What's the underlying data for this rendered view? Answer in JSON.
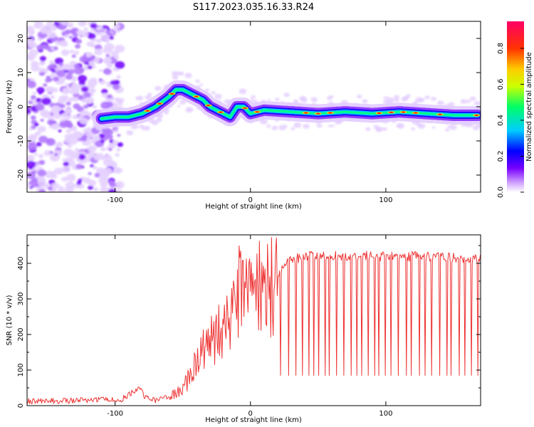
{
  "title": "S117.2023.035.16.33.R24",
  "chart_data": [
    {
      "type": "heatmap",
      "xlabel": "Height of straight line (km)",
      "ylabel": "Frequency (Hz)",
      "xlim": [
        -165,
        170
      ],
      "ylim": [
        -25,
        25
      ],
      "x_ticks": [
        -100,
        0,
        100
      ],
      "y_ticks": [
        -20,
        -10,
        0,
        10,
        20
      ],
      "colorbar": {
        "label": "Normalized spectral amplitude",
        "range": [
          0,
          0.95
        ],
        "ticks": [
          0.0,
          0.2,
          0.4,
          0.6,
          0.8
        ],
        "colors": [
          "#ffffff",
          "#cc99ff",
          "#7700ff",
          "#0000ff",
          "#00ccff",
          "#00ff66",
          "#ccff00",
          "#ffcc00",
          "#ff3300",
          "#ff0066"
        ]
      },
      "ridge": {
        "x": [
          -110,
          -100,
          -90,
          -80,
          -70,
          -60,
          -55,
          -50,
          -45,
          -40,
          -35,
          -30,
          -25,
          -20,
          -15,
          -10,
          -5,
          0,
          10,
          30,
          50,
          70,
          90,
          110,
          130,
          150,
          168
        ],
        "y": [
          -3.5,
          -3,
          -3,
          -2,
          0,
          3,
          5,
          5,
          4,
          3,
          2,
          0,
          -1,
          -2,
          -3,
          0,
          0,
          -2,
          -1,
          -1.5,
          -2,
          -1.5,
          -2,
          -1.5,
          -2,
          -2.5,
          -2.5
        ]
      },
      "noise_region_x": [
        -165,
        -100
      ]
    },
    {
      "type": "line",
      "xlabel": "Height of straight line (km)",
      "ylabel": "SNR (10 * v/v)",
      "xlim": [
        -165,
        170
      ],
      "ylim": [
        0,
        480
      ],
      "x_ticks": [
        -100,
        0,
        100
      ],
      "y_ticks": [
        0,
        100,
        200,
        300,
        400
      ],
      "color": "#ee3333",
      "profile": {
        "x": [
          -165,
          -120,
          -95,
          -88,
          -82,
          -78,
          -70,
          -60,
          -50,
          -45,
          -40,
          -35,
          -30,
          -25,
          -20,
          -15,
          -10,
          -5,
          0,
          5,
          10,
          15,
          20,
          25,
          30,
          40,
          60,
          100,
          140,
          170
        ],
        "y": [
          12,
          15,
          18,
          35,
          55,
          25,
          15,
          25,
          45,
          80,
          120,
          150,
          170,
          190,
          220,
          250,
          280,
          300,
          310,
          320,
          335,
          345,
          365,
          390,
          410,
          420,
          422,
          420,
          420,
          410
        ],
        "dropout_start": 20,
        "dropout_level": 85
      }
    }
  ]
}
